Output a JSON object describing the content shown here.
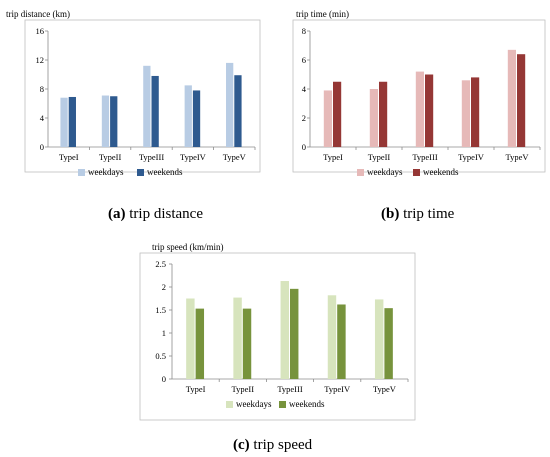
{
  "chart_data": [
    {
      "type": "bar",
      "ylabel": "trip distance (km)",
      "categories": [
        "TypeI",
        "TypeII",
        "TypeIII",
        "TypeIV",
        "TypeV"
      ],
      "ylim": [
        0,
        16
      ],
      "yticks": [
        0,
        4,
        8,
        12,
        16
      ],
      "series": [
        {
          "name": "weekdays",
          "values": [
            6.8,
            7.1,
            11.2,
            8.5,
            11.6
          ],
          "color": "#b8cce4"
        },
        {
          "name": "weekends",
          "values": [
            6.9,
            7.0,
            9.8,
            7.8,
            9.9
          ],
          "color": "#2e5a8f"
        }
      ],
      "grid": false,
      "legend": "bottom"
    },
    {
      "type": "bar",
      "ylabel": "trip time (min)",
      "categories": [
        "TypeI",
        "TypeII",
        "TypeIII",
        "TypeIV",
        "TypeV"
      ],
      "ylim": [
        0,
        8
      ],
      "yticks": [
        0,
        2,
        4,
        6,
        8
      ],
      "series": [
        {
          "name": "weekdays",
          "values": [
            3.9,
            4.0,
            5.2,
            4.6,
            6.7
          ],
          "color": "#e6b9b8"
        },
        {
          "name": "weekends",
          "values": [
            4.5,
            4.5,
            5.0,
            4.8,
            6.4
          ],
          "color": "#953735"
        }
      ],
      "grid": false,
      "legend": "bottom"
    },
    {
      "type": "bar",
      "ylabel": "trip speed (km/min)",
      "categories": [
        "TypeI",
        "TypeII",
        "TypeIII",
        "TypeIV",
        "TypeV"
      ],
      "ylim": [
        0,
        2.5
      ],
      "yticks": [
        "0",
        "0.5",
        "1",
        "1.5",
        "2",
        "2.5"
      ],
      "series": [
        {
          "name": "weekdays",
          "values": [
            1.75,
            1.77,
            2.13,
            1.82,
            1.73
          ],
          "color": "#d7e4bd"
        },
        {
          "name": "weekends",
          "values": [
            1.53,
            1.53,
            1.96,
            1.62,
            1.54
          ],
          "color": "#77933c"
        }
      ],
      "grid": false,
      "legend": "bottom"
    }
  ],
  "captions": [
    {
      "letter": "(a)",
      "text": " trip distance"
    },
    {
      "letter": "(b)",
      "text": " trip time"
    },
    {
      "letter": "(c)",
      "text": " trip speed"
    }
  ]
}
